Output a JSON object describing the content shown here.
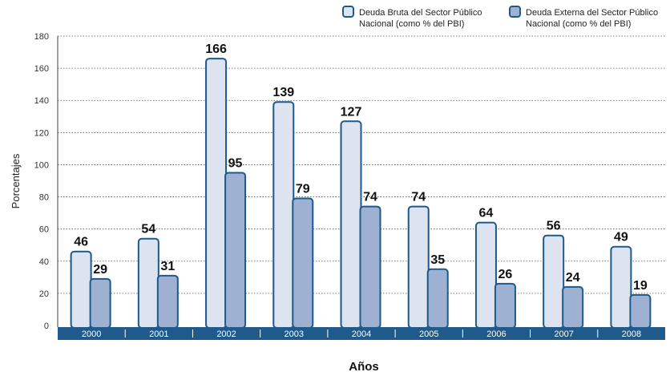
{
  "chart_data": {
    "type": "bar",
    "categories": [
      "2000",
      "2001",
      "2002",
      "2003",
      "2004",
      "2005",
      "2006",
      "2007",
      "2008"
    ],
    "series": [
      {
        "name": "Deuda Bruta del Sector Público Nacional (como % del PBI)",
        "name_lines": [
          "Deuda Bruta del Sector Público",
          "Nacional (como % del PBI)"
        ],
        "values": [
          46,
          54,
          166,
          139,
          127,
          74,
          64,
          56,
          49
        ],
        "fill": "#dde3ef",
        "stroke": "#1b5a8a"
      },
      {
        "name": "Deuda Externa del Sector Público Nacional (como % del PBI)",
        "name_lines": [
          "Deuda Externa del Sector Público",
          "Nacional (como % del PBI)"
        ],
        "values": [
          29,
          31,
          95,
          79,
          74,
          35,
          26,
          24,
          19
        ],
        "fill": "#9eb1d3",
        "stroke": "#1b5a8a"
      }
    ],
    "xlabel": "Años",
    "ylabel": "Porcentajes",
    "ylim": [
      0,
      180
    ],
    "yticks": [
      0,
      20,
      40,
      60,
      80,
      100,
      120,
      140,
      160,
      180
    ],
    "grid": true,
    "legend_position": "top-right",
    "category_band_color": "#1f5a8b"
  }
}
